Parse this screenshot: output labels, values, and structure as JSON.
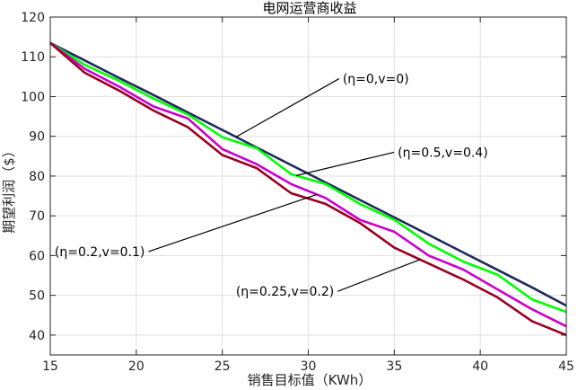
{
  "chart_data": {
    "type": "line",
    "title": "电网运营商收益",
    "xlabel": "销售目标值（KWh）",
    "ylabel": "期望利润（$）",
    "xlim": [
      15,
      45
    ],
    "ylim": [
      35,
      120
    ],
    "xticks": [
      15,
      20,
      25,
      30,
      35,
      40,
      45
    ],
    "yticks": [
      40,
      50,
      60,
      70,
      80,
      90,
      100,
      110,
      120
    ],
    "grid": true,
    "legend": "none",
    "x": [
      15,
      17,
      19,
      21,
      23,
      25,
      27,
      29,
      31,
      33,
      35,
      37,
      39,
      41,
      43,
      45
    ],
    "series": [
      {
        "name": "(η=0,v=0)",
        "color": "#1f2a5c",
        "values": [
          113.5,
          109.1,
          104.7,
          100.4,
          96.0,
          91.6,
          87.2,
          82.8,
          78.4,
          74.0,
          69.6,
          65.2,
          60.8,
          56.4,
          52.0,
          47.4
        ]
      },
      {
        "name": "(η=0.5,v=0.4)",
        "color": "#00ff00",
        "values": [
          113.5,
          108.0,
          104.0,
          99.5,
          95.5,
          89.8,
          87.0,
          80.5,
          78.0,
          73.0,
          69.0,
          63.0,
          58.5,
          55.2,
          49.0,
          45.8
        ]
      },
      {
        "name": "(η=0.2,v=0.1)",
        "color": "#cc00cc",
        "values": [
          113.5,
          107.0,
          102.5,
          97.5,
          94.5,
          86.8,
          83.0,
          78.0,
          74.5,
          69.0,
          66.0,
          60.0,
          56.5,
          51.5,
          46.5,
          42.2
        ]
      },
      {
        "name": "(η=0.25,v=0.2)",
        "color": "#990022",
        "values": [
          113.5,
          106.0,
          101.5,
          96.5,
          92.3,
          85.3,
          82.0,
          75.7,
          73.0,
          68.2,
          62.0,
          58.0,
          54.0,
          49.5,
          43.5,
          40.0
        ]
      }
    ],
    "annotations": [
      {
        "text": "(η=0,v=0)",
        "series": 0,
        "target_x": 25.8,
        "label_x": 32.0,
        "label_y": 104.5
      },
      {
        "text": "(η=0.5,v=0.4)",
        "series": 1,
        "target_x": 29.3,
        "label_x": 35.2,
        "label_y": 86.0
      },
      {
        "text": "(η=0.2,v=0.1)",
        "series": 2,
        "target_x": 30.5,
        "label_x": 20.5,
        "label_y": 61.0
      },
      {
        "text": "(η=0.25,v=0.2)",
        "series": 3,
        "target_x": 36.5,
        "label_x": 31.5,
        "label_y": 51.0
      }
    ],
    "colors": {
      "axis": "#262626",
      "grid": "#dfdfdf",
      "background": "#ffffff",
      "annotation_line": "#000000"
    }
  }
}
